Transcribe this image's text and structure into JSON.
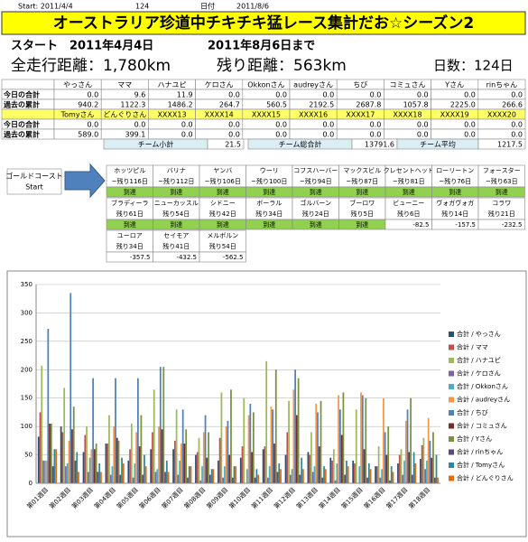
{
  "header": {
    "start_label": "Start: 2011/4/4",
    "days": "124",
    "date_label": "日付",
    "date": "2011/8/6",
    "title": "オーストラリア珍道中チキチキ猛レース集計だお☆シーズン2",
    "start_line": "スタート　2011年4月4日",
    "end_line": "2011年8月6日まで",
    "distance": "全走行距離：1,780km",
    "remaining": "残り距離：563km",
    "days_count": "日数：124日"
  },
  "table": {
    "groups": [
      {
        "names": [
          "やっさん",
          "ママ",
          "ハナユピ",
          "ケロさん",
          "Okkonさん",
          "audreyさん",
          "ちび",
          "コミュさん",
          "Yさん",
          "rinちゃん"
        ],
        "rows": [
          {
            "label": "今日の合計",
            "values": [
              "0.0",
              "9.6",
              "11.9",
              "0.0",
              "0.0",
              "0.0",
              "0.0",
              "0.0",
              "0.0",
              "0.0"
            ]
          },
          {
            "label": "過去の累計",
            "values": [
              "940.2",
              "1122.3",
              "1486.2",
              "264.7",
              "560.5",
              "2192.5",
              "2687.8",
              "1057.8",
              "2225.0",
              "266.6"
            ]
          }
        ]
      },
      {
        "names": [
          "Tomyさん",
          "どんぐりさん",
          "XXXX13",
          "XXXX14",
          "XXXX15",
          "XXXX16",
          "XXXX17",
          "XXXX18",
          "XXXX19",
          "XXXX20"
        ],
        "rows": [
          {
            "label": "今日の合計",
            "values": [
              "0.0",
              "0.0",
              "0.0",
              "0.0",
              "0.0",
              "0.0",
              "0.0",
              "0.0",
              "0.0",
              "0.0"
            ]
          },
          {
            "label": "過去の累計",
            "values": [
              "589.0",
              "399.1",
              "0.0",
              "0.0",
              "0.0",
              "0.0",
              "0.0",
              "0.0",
              "0.0",
              "0.0"
            ]
          }
        ]
      }
    ],
    "summary": [
      {
        "label": "チーム小計",
        "value": "21.5"
      },
      {
        "label": "チーム総合計",
        "value": "13791.6"
      },
      {
        "label": "チーム平均",
        "value": "1217.5"
      }
    ]
  },
  "course": {
    "start": "ゴールドコースト",
    "start_sub": "Start",
    "cells": [
      {
        "name": "ホッツピル",
        "days": "~残り116日",
        "status": "到達"
      },
      {
        "name": "バリナ",
        "days": "~残り112日",
        "status": "到達"
      },
      {
        "name": "ヤンバ",
        "days": "~残り106日",
        "status": "到達"
      },
      {
        "name": "ウーリ",
        "days": "~残り100日",
        "status": "到達"
      },
      {
        "name": "コフスハーバー",
        "days": "~残り94日",
        "status": "到達"
      },
      {
        "name": "マックスビル",
        "days": "~残り87日",
        "status": "到達"
      },
      {
        "name": "クレセントヘッド",
        "days": "~残り81日",
        "status": "到達"
      },
      {
        "name": "ローリートン",
        "days": "~残り76日",
        "status": "到達"
      },
      {
        "name": "フォースター",
        "days": "~残り63日",
        "status": "到達"
      },
      {
        "name": "ブラディーラ",
        "days": "残り61日",
        "status": "到達"
      },
      {
        "name": "ニューカッスル",
        "days": "残り54日",
        "status": "到達"
      },
      {
        "name": "シドニー",
        "days": "残り42日",
        "status": "到達"
      },
      {
        "name": "ボーラル",
        "days": "残り34日",
        "status": "到達"
      },
      {
        "name": "ゴルバーン",
        "days": "残り24日",
        "status": "到達"
      },
      {
        "name": "ブーロワ",
        "days": "残り5日",
        "status": "到達"
      },
      {
        "name": "ビューニー",
        "days": "残り6日",
        "status": "-82.5"
      },
      {
        "name": "ヴォガヴォガ",
        "days": "残り14日",
        "status": "-157.5"
      },
      {
        "name": "コラワ",
        "days": "残り21日",
        "status": "-232.5"
      },
      {
        "name": "ユーロア",
        "days": "残り34日",
        "status": "-357.5"
      },
      {
        "name": "セイモア",
        "days": "残り41日",
        "status": "-432.5"
      },
      {
        "name": "メルボルン",
        "days": "残り54日",
        "status": "-562.5"
      }
    ]
  },
  "chart_data": {
    "type": "bar",
    "categories": [
      "第01週目",
      "第02週目",
      "第03週目",
      "第04週目",
      "第05週目",
      "第06週目",
      "第07週目",
      "第08週目",
      "第09週目",
      "第10週目",
      "第11週目",
      "第12週目",
      "第13週目",
      "第14週目",
      "第15週目",
      "第16週目",
      "第17週目",
      "第18週目"
    ],
    "ylim": [
      0,
      350
    ],
    "yticks": [
      0,
      50,
      100,
      150,
      200,
      250,
      300,
      350
    ],
    "grid": true,
    "series": [
      {
        "name": "合計 / やっさん",
        "color": "#2c4d75",
        "values": [
          82,
          100,
          55,
          70,
          40,
          60,
          60,
          50,
          40,
          45,
          60,
          50,
          55,
          45,
          40,
          30,
          35,
          43
        ]
      },
      {
        "name": "合計 / ママ",
        "color": "#c0504d",
        "values": [
          125,
          90,
          85,
          70,
          60,
          90,
          75,
          55,
          80,
          65,
          65,
          90,
          50,
          40,
          35,
          30,
          50,
          67
        ]
      },
      {
        "name": "合計 / ハナユピ",
        "color": "#9bbb59",
        "values": [
          207,
          168,
          100,
          120,
          105,
          165,
          130,
          80,
          160,
          150,
          215,
          145,
          90,
          60,
          130,
          65,
          60,
          80
        ]
      },
      {
        "name": "合計 / ケロさん",
        "color": "#8064a2",
        "values": [
          40,
          30,
          20,
          15,
          10,
          20,
          15,
          5,
          10,
          0,
          10,
          15,
          20,
          5,
          0,
          10,
          15,
          25
        ]
      },
      {
        "name": "合計 / Okkonさん",
        "color": "#4bacc6",
        "values": [
          40,
          35,
          45,
          30,
          35,
          25,
          40,
          30,
          30,
          25,
          30,
          25,
          30,
          35,
          30,
          25,
          40,
          40
        ]
      },
      {
        "name": "合計 / audreyさん",
        "color": "#f79646",
        "values": [
          40,
          75,
          60,
          100,
          90,
          100,
          70,
          90,
          100,
          120,
          135,
          165,
          140,
          155,
          160,
          150,
          110,
          115
        ]
      },
      {
        "name": "合計 / ちび",
        "color": "#4f81bd",
        "values": [
          272,
          335,
          185,
          185,
          185,
          205,
          130,
          120,
          110,
          140,
          130,
          200,
          125,
          130,
          155,
          90,
          130,
          75
        ]
      },
      {
        "name": "合計 / コミュさん",
        "color": "#772c2a",
        "values": [
          105,
          95,
          60,
          80,
          65,
          95,
          70,
          45,
          50,
          55,
          70,
          120,
          65,
          85,
          60,
          50,
          55,
          45
        ]
      },
      {
        "name": "合計 / Yさん",
        "color": "#77933c",
        "values": [
          105,
          135,
          70,
          75,
          120,
          205,
          95,
          90,
          165,
          125,
          200,
          185,
          145,
          160,
          150,
          100,
          150,
          90
        ]
      },
      {
        "name": "合計 / rinちゃん",
        "color": "#604a7b",
        "values": [
          30,
          40,
          20,
          15,
          15,
          20,
          10,
          15,
          10,
          10,
          20,
          15,
          10,
          15,
          10,
          5,
          15,
          10
        ]
      },
      {
        "name": "合計 / Tomyさん",
        "color": "#31859c",
        "values": [
          60,
          55,
          35,
          45,
          50,
          40,
          30,
          25,
          30,
          25,
          35,
          45,
          30,
          40,
          35,
          30,
          55,
          50
        ]
      },
      {
        "name": "合計 / どんぐりさん",
        "color": "#e46c0a",
        "values": [
          60,
          20,
          20,
          35,
          30,
          20,
          30,
          25,
          30,
          15,
          25,
          25,
          25,
          30,
          25,
          20,
          35,
          10
        ]
      }
    ]
  }
}
